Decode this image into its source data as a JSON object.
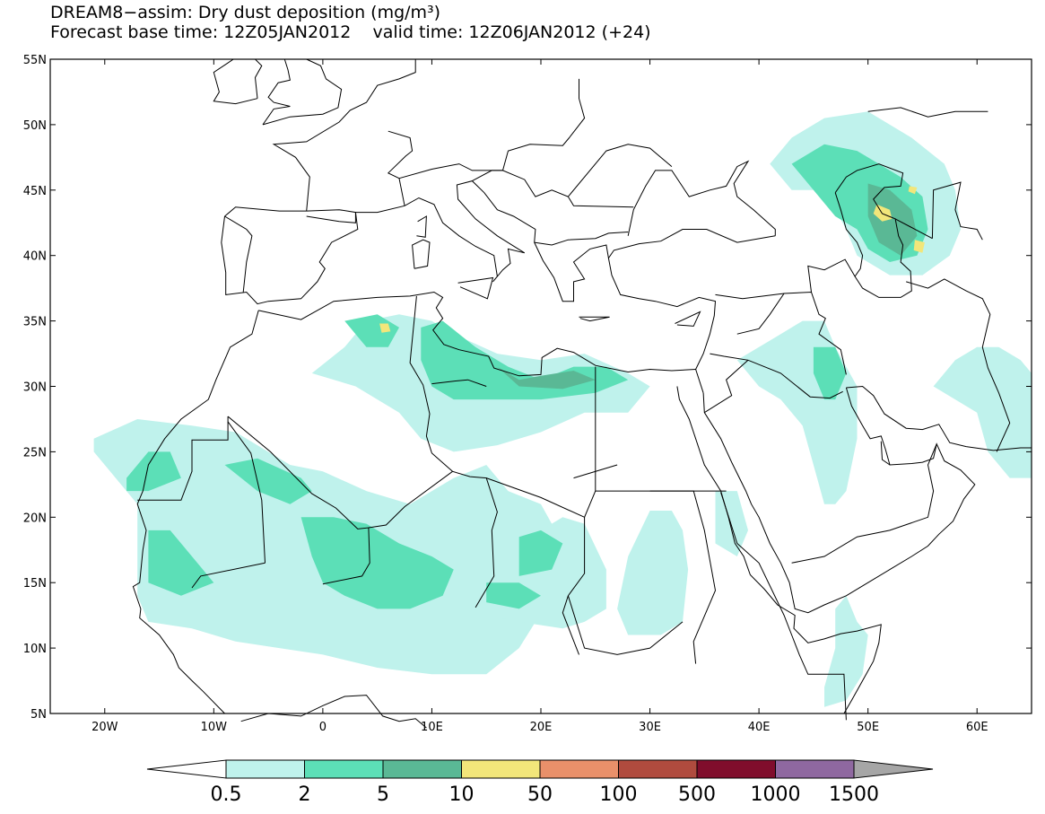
{
  "title": {
    "line1": "DREAM8−assim: Dry dust deposition (mg/m³)",
    "line2": "Forecast base time: 12Z05JAN2012    valid time: 12Z06JAN2012 (+24)"
  },
  "map": {
    "lon_range": [
      -25,
      65
    ],
    "lat_range": [
      5,
      55
    ],
    "lat_ticks": [
      {
        "value": 55,
        "label": "55N"
      },
      {
        "value": 50,
        "label": "50N"
      },
      {
        "value": 45,
        "label": "45N"
      },
      {
        "value": 40,
        "label": "40N"
      },
      {
        "value": 35,
        "label": "35N"
      },
      {
        "value": 30,
        "label": "30N"
      },
      {
        "value": 25,
        "label": "25N"
      },
      {
        "value": 20,
        "label": "20N"
      },
      {
        "value": 15,
        "label": "15N"
      },
      {
        "value": 10,
        "label": "10N"
      },
      {
        "value": 5,
        "label": "5N"
      }
    ],
    "lon_ticks": [
      {
        "value": -20,
        "label": "20W"
      },
      {
        "value": -10,
        "label": "10W"
      },
      {
        "value": 0,
        "label": "0"
      },
      {
        "value": 10,
        "label": "10E"
      },
      {
        "value": 20,
        "label": "20E"
      },
      {
        "value": 30,
        "label": "30E"
      },
      {
        "value": 40,
        "label": "40E"
      },
      {
        "value": 50,
        "label": "50E"
      },
      {
        "value": 60,
        "label": "60E"
      }
    ]
  },
  "colorbar": {
    "labels": [
      "0.5",
      "2",
      "5",
      "10",
      "50",
      "100",
      "500",
      "1000",
      "1500"
    ],
    "colors": [
      "#bff2ec",
      "#5cdfb7",
      "#5ab895",
      "#f2e67a",
      "#e9906a",
      "#b04b3e",
      "#800d2c",
      "#8f68a0"
    ],
    "min_color": "#ffffff",
    "max_color": "#a6a6a6"
  },
  "dust_regions": [
    {
      "level": 0,
      "points": [
        [
          -21,
          26
        ],
        [
          -17,
          27.5
        ],
        [
          -12,
          27
        ],
        [
          -8,
          26.5
        ],
        [
          -3,
          24
        ],
        [
          0,
          23.5
        ],
        [
          4,
          22
        ],
        [
          8,
          21
        ],
        [
          12,
          23
        ],
        [
          15,
          24
        ],
        [
          17,
          22
        ],
        [
          20,
          21
        ],
        [
          22,
          18
        ],
        [
          21,
          14
        ],
        [
          18,
          10
        ],
        [
          15,
          8
        ],
        [
          10,
          8
        ],
        [
          5,
          8.5
        ],
        [
          0,
          9.5
        ],
        [
          -4,
          10
        ],
        [
          -8,
          10.5
        ],
        [
          -12,
          11.5
        ],
        [
          -16,
          12
        ],
        [
          -17,
          14
        ],
        [
          -17,
          17
        ],
        [
          -17,
          21
        ],
        [
          -19,
          23
        ],
        [
          -21,
          25
        ]
      ]
    },
    {
      "level": 0,
      "points": [
        [
          -1,
          31
        ],
        [
          2,
          33
        ],
        [
          4,
          35
        ],
        [
          7,
          35.5
        ],
        [
          10,
          35
        ],
        [
          12,
          34
        ],
        [
          16,
          32.5
        ],
        [
          20,
          32
        ],
        [
          24,
          32.5
        ],
        [
          28,
          31
        ],
        [
          30,
          30
        ],
        [
          28,
          28
        ],
        [
          24,
          28
        ],
        [
          20,
          26.5
        ],
        [
          16,
          25.5
        ],
        [
          12,
          25
        ],
        [
          9,
          26
        ],
        [
          7,
          28
        ],
        [
          5,
          29
        ],
        [
          3,
          30
        ]
      ]
    },
    {
      "level": 0,
      "points": [
        [
          20,
          19
        ],
        [
          22,
          20
        ],
        [
          24,
          19.5
        ],
        [
          26,
          16
        ],
        [
          26,
          13
        ],
        [
          24,
          12
        ],
        [
          22,
          11.5
        ],
        [
          18,
          12
        ],
        [
          15,
          12.5
        ],
        [
          16,
          15
        ],
        [
          18,
          17
        ]
      ]
    },
    {
      "level": 0,
      "points": [
        [
          30,
          20.5
        ],
        [
          32,
          20.5
        ],
        [
          33,
          19
        ],
        [
          33.5,
          16
        ],
        [
          33,
          12
        ],
        [
          31,
          11
        ],
        [
          28,
          11
        ],
        [
          27,
          13
        ],
        [
          28,
          17
        ]
      ]
    },
    {
      "level": 0,
      "points": [
        [
          36,
          22
        ],
        [
          38,
          22
        ],
        [
          39,
          19
        ],
        [
          38,
          17
        ],
        [
          36,
          18
        ]
      ]
    },
    {
      "level": 0,
      "points": [
        [
          38,
          32
        ],
        [
          40,
          33
        ],
        [
          42,
          34
        ],
        [
          44,
          35
        ],
        [
          46,
          35
        ],
        [
          47,
          33
        ],
        [
          49,
          30
        ],
        [
          49,
          26
        ],
        [
          48,
          22
        ],
        [
          47,
          21
        ],
        [
          46,
          21
        ],
        [
          45,
          24
        ],
        [
          44,
          27
        ],
        [
          42,
          29
        ],
        [
          40,
          30
        ]
      ]
    },
    {
      "level": 0,
      "points": [
        [
          56,
          30
        ],
        [
          58,
          32
        ],
        [
          60,
          33
        ],
        [
          62,
          33
        ],
        [
          64,
          32
        ],
        [
          65,
          31
        ],
        [
          65,
          23
        ],
        [
          63,
          23
        ],
        [
          61,
          25
        ],
        [
          60,
          28
        ],
        [
          58,
          29
        ]
      ]
    },
    {
      "level": 0,
      "points": [
        [
          47,
          13
        ],
        [
          48,
          14
        ],
        [
          49,
          12
        ],
        [
          50,
          11
        ],
        [
          49.5,
          8
        ],
        [
          48,
          6
        ],
        [
          46,
          5.5
        ],
        [
          46,
          7
        ],
        [
          47,
          10
        ]
      ]
    },
    {
      "level": 0,
      "points": [
        [
          41,
          47
        ],
        [
          43,
          49
        ],
        [
          46,
          50.5
        ],
        [
          50,
          51
        ],
        [
          54,
          49
        ],
        [
          57,
          47
        ],
        [
          58,
          45
        ],
        [
          58.5,
          42
        ],
        [
          57.5,
          40
        ],
        [
          55,
          38.5
        ],
        [
          52,
          38.5
        ],
        [
          49,
          40
        ],
        [
          48,
          42
        ],
        [
          46,
          45
        ],
        [
          43,
          45
        ]
      ]
    },
    {
      "level": 1,
      "points": [
        [
          -18,
          23
        ],
        [
          -16,
          25
        ],
        [
          -14,
          25
        ],
        [
          -13,
          23
        ],
        [
          -16,
          22
        ],
        [
          -18,
          22
        ]
      ]
    },
    {
      "level": 1,
      "points": [
        [
          -9,
          24
        ],
        [
          -6,
          24.5
        ],
        [
          -2,
          23
        ],
        [
          -1,
          22
        ],
        [
          -3,
          21
        ],
        [
          -6,
          22
        ]
      ]
    },
    {
      "level": 1,
      "points": [
        [
          -16,
          19
        ],
        [
          -14,
          19
        ],
        [
          -12,
          17
        ],
        [
          -10,
          15
        ],
        [
          -13,
          14
        ],
        [
          -16,
          15
        ]
      ]
    },
    {
      "level": 1,
      "points": [
        [
          -2,
          20
        ],
        [
          1,
          20
        ],
        [
          4,
          19.5
        ],
        [
          7,
          18
        ],
        [
          10,
          17
        ],
        [
          12,
          16
        ],
        [
          11,
          14
        ],
        [
          8,
          13
        ],
        [
          5,
          13
        ],
        [
          2,
          14
        ],
        [
          0,
          15
        ],
        [
          -1,
          17
        ]
      ]
    },
    {
      "level": 1,
      "points": [
        [
          2,
          35
        ],
        [
          5,
          35.5
        ],
        [
          7,
          34.5
        ],
        [
          6,
          33
        ],
        [
          4,
          33
        ]
      ]
    },
    {
      "level": 1,
      "points": [
        [
          9,
          34.5
        ],
        [
          11,
          35
        ],
        [
          14,
          33
        ],
        [
          17,
          31.5
        ],
        [
          20,
          30.5
        ],
        [
          23,
          31.5
        ],
        [
          26,
          31.5
        ],
        [
          28,
          30.5
        ],
        [
          25,
          29.5
        ],
        [
          20,
          29
        ],
        [
          16,
          29
        ],
        [
          12,
          29
        ],
        [
          10,
          30
        ],
        [
          9,
          32
        ]
      ]
    },
    {
      "level": 1,
      "points": [
        [
          18,
          18.5
        ],
        [
          20,
          19
        ],
        [
          22,
          18
        ],
        [
          21,
          16
        ],
        [
          18,
          15.5
        ]
      ]
    },
    {
      "level": 1,
      "points": [
        [
          15,
          15
        ],
        [
          18,
          15
        ],
        [
          20,
          14
        ],
        [
          18,
          13
        ],
        [
          15,
          13.5
        ]
      ]
    },
    {
      "level": 1,
      "points": [
        [
          45,
          33
        ],
        [
          47,
          33
        ],
        [
          48,
          31
        ],
        [
          47,
          29
        ],
        [
          46,
          29
        ],
        [
          45,
          31
        ]
      ]
    },
    {
      "level": 1,
      "points": [
        [
          43,
          47
        ],
        [
          46,
          48.5
        ],
        [
          49,
          48
        ],
        [
          51,
          47
        ],
        [
          53,
          46
        ],
        [
          55,
          44.5
        ],
        [
          55.5,
          42
        ],
        [
          54.5,
          40
        ],
        [
          52,
          39.5
        ],
        [
          50,
          40.5
        ],
        [
          49,
          42
        ],
        [
          47,
          43
        ],
        [
          45,
          45
        ]
      ]
    },
    {
      "level": 2,
      "points": [
        [
          16,
          31.5
        ],
        [
          18,
          30.5
        ],
        [
          20,
          30.8
        ],
        [
          23,
          31.2
        ],
        [
          25,
          30.5
        ],
        [
          22,
          29.8
        ],
        [
          18,
          30
        ]
      ]
    },
    {
      "level": 2,
      "points": [
        [
          50,
          45.5
        ],
        [
          52,
          45
        ],
        [
          54,
          43.5
        ],
        [
          54.5,
          41.5
        ],
        [
          53,
          40
        ],
        [
          51,
          41
        ],
        [
          50,
          43
        ]
      ]
    },
    {
      "level": 3,
      "points": [
        [
          5.2,
          34.8
        ],
        [
          6,
          34.8
        ],
        [
          6.2,
          34.2
        ],
        [
          5.4,
          34.1
        ]
      ]
    },
    {
      "level": 3,
      "points": [
        [
          50.8,
          43.9
        ],
        [
          52,
          43.5
        ],
        [
          52.2,
          42.8
        ],
        [
          51.3,
          42.6
        ],
        [
          50.5,
          43.2
        ]
      ]
    },
    {
      "level": 3,
      "points": [
        [
          54.3,
          41.2
        ],
        [
          55.2,
          41
        ],
        [
          55,
          40.2
        ],
        [
          54.2,
          40.4
        ]
      ]
    },
    {
      "level": 3,
      "points": [
        [
          53.8,
          45.3
        ],
        [
          54.5,
          45.2
        ],
        [
          54.3,
          44.7
        ],
        [
          53.7,
          44.9
        ]
      ]
    }
  ]
}
